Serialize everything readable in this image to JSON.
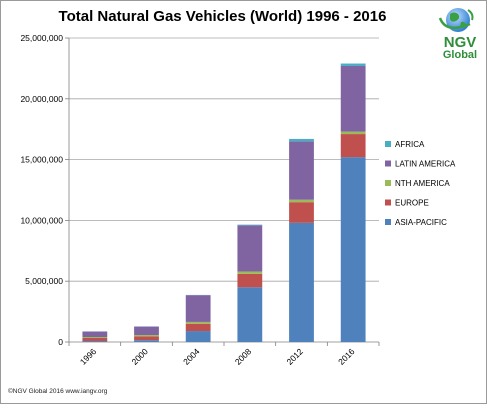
{
  "chart_data": {
    "type": "bar",
    "stacked": true,
    "title": "Total Natural Gas Vehicles (World) 1996 - 2016",
    "categories": [
      "1996",
      "2000",
      "2004",
      "2008",
      "2012",
      "2016"
    ],
    "ylim": [
      0,
      25000000
    ],
    "yticks": [
      "0",
      "5,000,000",
      "10,000,000",
      "15,000,000",
      "20,000,000",
      "25,000,000"
    ],
    "ytick_values": [
      0,
      5000000,
      10000000,
      15000000,
      20000000,
      25000000
    ],
    "grid": true,
    "legend_position": "right",
    "series": [
      {
        "name": "ASIA-PACIFIC",
        "color": "#4f81bd",
        "values": [
          80000,
          150000,
          900000,
          4500000,
          9800000,
          15200000
        ]
      },
      {
        "name": "EUROPE",
        "color": "#c0504d",
        "values": [
          250000,
          300000,
          600000,
          1100000,
          1700000,
          1900000
        ]
      },
      {
        "name": "NTH AMERICA",
        "color": "#9bbb59",
        "values": [
          80000,
          120000,
          150000,
          200000,
          200000,
          200000
        ]
      },
      {
        "name": "LATIN AMERICA",
        "color": "#8064a2",
        "values": [
          450000,
          700000,
          2200000,
          3800000,
          4800000,
          5400000
        ]
      },
      {
        "name": "AFRICA",
        "color": "#4bacc6",
        "values": [
          10000,
          10000,
          20000,
          50000,
          200000,
          200000
        ]
      }
    ]
  },
  "logo": {
    "line1": "NGV",
    "line2": "Global"
  },
  "footer": {
    "copyright": "©NGV Global 2016  www.iangv.org"
  }
}
